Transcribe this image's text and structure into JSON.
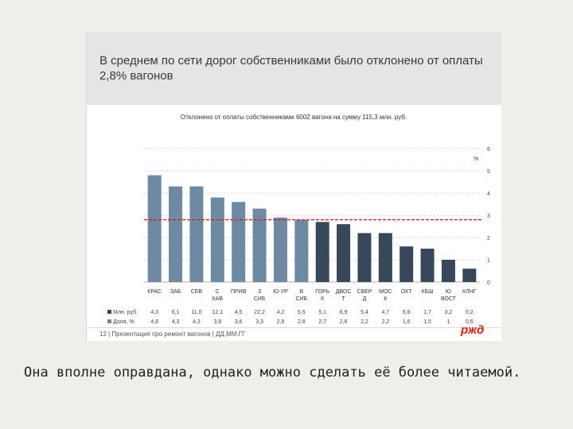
{
  "slide": {
    "title": "В среднем по сети дорог собственниками было отклонено от оплаты 2,8% вагонов",
    "footer": "12 | Презентация про ремонт вагонов | ДД.ММ.ГГ",
    "logo_text": "РЖД"
  },
  "caption": "Она вполне оправдана, однако можно сделать её более читаемой.",
  "colors": {
    "light_bar": "#6e8aa3",
    "dark_bar": "#37485a",
    "average_line": "#d11f1f",
    "grid": "#c8c8c8"
  },
  "chart_data": {
    "type": "bar",
    "title": "Отклонено от оплаты собственниками 6002 вагона на сумму 115,3 млн. руб.",
    "y2_unit": "%",
    "ylim": [
      0,
      6
    ],
    "yticks": [
      "0",
      "1",
      "2",
      "3",
      "4",
      "5",
      "6"
    ],
    "average": 2.8,
    "grid": true,
    "categories": [
      "КРАС",
      "ЗАБ",
      "СЕВ",
      "С КАВ",
      "ПРИВ",
      "З СИБ",
      "Ю-УР",
      "В СИБ",
      "ГОРЬ К",
      "ДВОС Т",
      "СВЕР Д",
      "МОС К",
      "ОКТ",
      "КБШ",
      "Ю ВОСТ",
      "КЛНГ"
    ],
    "categories_display": [
      [
        "КРАС"
      ],
      [
        "ЗАБ"
      ],
      [
        "СЕВ"
      ],
      [
        "С",
        "КАВ"
      ],
      [
        "ПРИВ"
      ],
      [
        "З",
        "СИБ"
      ],
      [
        "Ю-УР"
      ],
      [
        "В",
        "СИБ"
      ],
      [
        "ГОРЬ",
        "К"
      ],
      [
        "ДВОС",
        "Т"
      ],
      [
        "СВЕР",
        "Д"
      ],
      [
        "МОС",
        "К"
      ],
      [
        "ОКТ"
      ],
      [
        "КБШ"
      ],
      [
        "Ю",
        "ВОСТ"
      ],
      [
        "КЛНГ"
      ]
    ],
    "values": [
      4.8,
      4.3,
      4.3,
      3.8,
      3.6,
      3.3,
      2.9,
      2.8,
      2.7,
      2.6,
      2.2,
      2.2,
      1.6,
      1.5,
      1.0,
      0.6
    ],
    "bar_shade": [
      "light",
      "light",
      "light",
      "light",
      "light",
      "light",
      "light",
      "light",
      "dark",
      "dark",
      "dark",
      "dark",
      "dark",
      "dark",
      "dark",
      "dark"
    ],
    "table": [
      {
        "label": "Млн. руб.",
        "values": [
          "4,3",
          "6,1",
          "11,0",
          "12,1",
          "4,5",
          "22,2",
          "4,2",
          "6,5",
          "5,1",
          "6,9",
          "5,4",
          "4,7",
          "6,8",
          "1,7",
          "3,2",
          "0,2"
        ]
      },
      {
        "label": "Доля, %",
        "values": [
          "4,8",
          "4,3",
          "4,3",
          "3,8",
          "3,6",
          "3,3",
          "2,9",
          "2,8",
          "2,7",
          "2,6",
          "2,2",
          "2,2",
          "1,6",
          "1,5",
          "1",
          "0,6"
        ]
      }
    ]
  }
}
